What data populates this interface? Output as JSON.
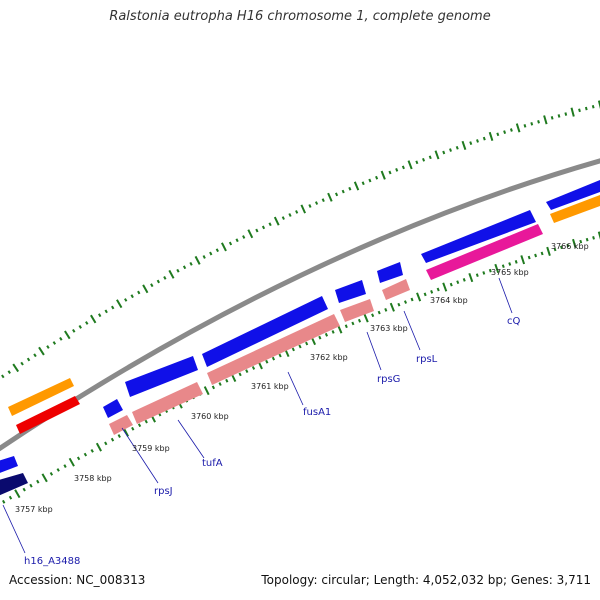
{
  "title": "Ralstonia eutropha H16 chromosome 1, complete genome",
  "footer": {
    "accession": "Accession: NC_008313",
    "stats": "Topology: circular; Length: 4,052,032 bp; Genes: 3,711"
  },
  "colors": {
    "backbone": "#8a8a8a",
    "tick": "#1f7a1f",
    "cds_forward": "#1010e8",
    "cds_dark": "#0a0a6e",
    "gene_pink": "#e8888a",
    "gene_magenta": "#e8189a",
    "orange": "#ff9900",
    "red": "#ee0000",
    "label": "#1a1aaa"
  },
  "scale_labels": [
    "3757 kbp",
    "3758 kbp",
    "3759 kbp",
    "3760 kbp",
    "3761 kbp",
    "3762 kbp",
    "3763 kbp",
    "3764 kbp",
    "3765 kbp",
    "3766 kbp"
  ],
  "gene_labels": [
    "h16_A3488",
    "rpsJ",
    "tufA",
    "fusA1",
    "rpsG",
    "rpsL",
    "cQ"
  ]
}
